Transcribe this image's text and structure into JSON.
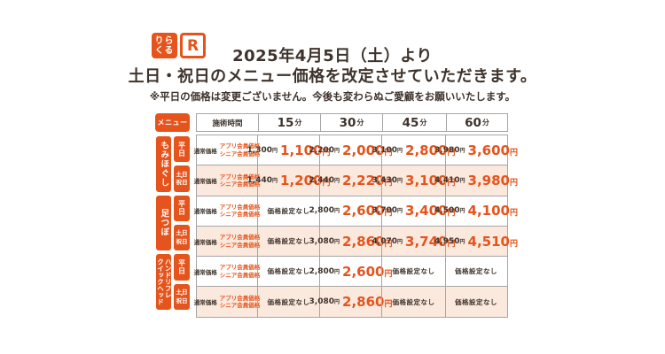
{
  "colors": {
    "orange": "#e5541c",
    "peach": "#fbe9de",
    "line": "#a5a5a5",
    "dark": "#3e332c"
  },
  "logo": {
    "kana_lines": [
      "りら",
      "くる"
    ],
    "mark": "R"
  },
  "header": {
    "title_line1": "2025年4月5日（土）より",
    "title_line2": "土日・祝日のメニュー価格を改定させていただきます。",
    "note": "※平日の価格は変更ございません。今後も変わらぬご愛顧をお願いいたします。"
  },
  "table": {
    "menu_label": "メニュー",
    "time_header": "施術時間",
    "durations": [
      {
        "num": "15",
        "unit": "分"
      },
      {
        "num": "30",
        "unit": "分"
      },
      {
        "num": "45",
        "unit": "分"
      },
      {
        "num": "60",
        "unit": "分"
      }
    ],
    "price_type_regular": "通常価格",
    "price_type_member_lines": [
      "アプリ会員価格",
      "シニア会員価格"
    ],
    "no_price": "価格設定なし",
    "yen": "円",
    "categories": [
      {
        "name": "もみほぐし",
        "rows": [
          {
            "day": "平日",
            "cells": [
              {
                "regular": "1,300",
                "member": "1,100"
              },
              {
                "regular": "2,200",
                "member": "2,000"
              },
              {
                "regular": "3,100",
                "member": "2,800"
              },
              {
                "regular": "3,980",
                "member": "3,600"
              }
            ]
          },
          {
            "day": "土日・祝日",
            "cells": [
              {
                "regular": "1,440",
                "member": "1,200"
              },
              {
                "regular": "2,440",
                "member": "2,220"
              },
              {
                "regular": "3,430",
                "member": "3,100"
              },
              {
                "regular": "4,410",
                "member": "3,980"
              }
            ]
          }
        ]
      },
      {
        "name": "足つぼ",
        "rows": [
          {
            "day": "平日",
            "cells": [
              null,
              {
                "regular": "2,800",
                "member": "2,600"
              },
              {
                "regular": "3,700",
                "member": "3,400"
              },
              {
                "regular": "4,500",
                "member": "4,100"
              }
            ]
          },
          {
            "day": "土日・祝日",
            "cells": [
              null,
              {
                "regular": "3,080",
                "member": "2,860"
              },
              {
                "regular": "4,070",
                "member": "3,740"
              },
              {
                "regular": "4,950",
                "member": "4,510"
              }
            ]
          }
        ]
      },
      {
        "name": "ハンドリフレ\nクイックヘッド",
        "rows": [
          {
            "day": "平日",
            "cells": [
              null,
              {
                "regular": "2,800",
                "member": "2,600"
              },
              null,
              null
            ]
          },
          {
            "day": "土日・祝日",
            "cells": [
              null,
              {
                "regular": "3,080",
                "member": "2,860"
              },
              null,
              null
            ]
          }
        ]
      }
    ]
  }
}
